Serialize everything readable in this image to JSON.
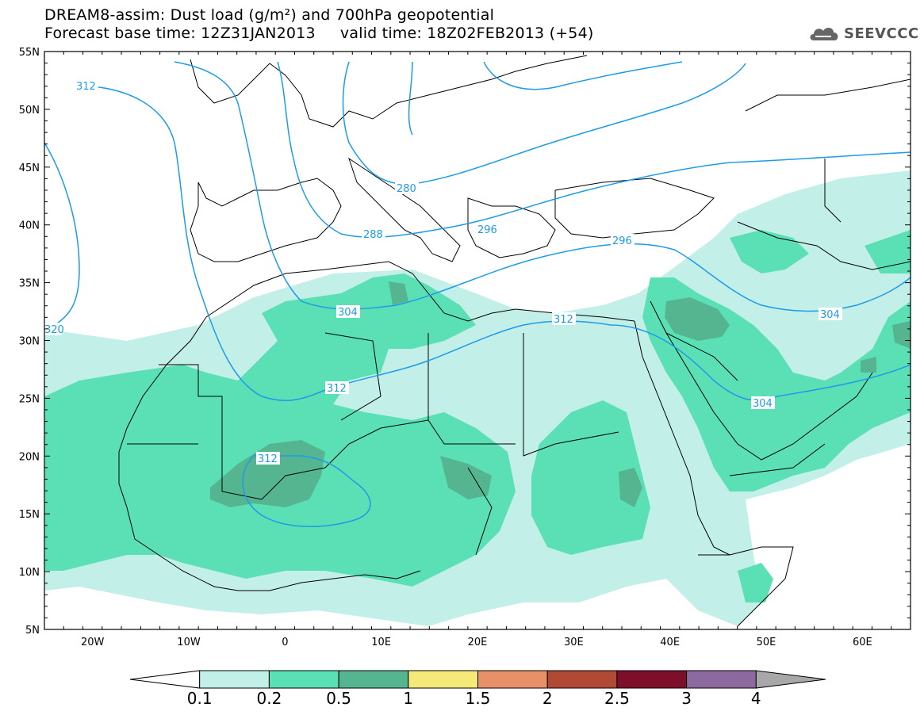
{
  "header": {
    "title_line1": "DREAM8-assim: Dust load (g/m²) and 700hPa geopotential",
    "title_line2": "Forecast base time: 12Z31JAN2013     valid time: 18Z02FEB2013 (+54)",
    "logo_text": "SEEVCCC"
  },
  "map": {
    "lon_range": [
      -25,
      65
    ],
    "lat_range": [
      5,
      55
    ],
    "lat_tick_labels": [
      "55N",
      "50N",
      "45N",
      "40N",
      "35N",
      "30N",
      "25N",
      "20N",
      "15N",
      "10N",
      "5N"
    ],
    "lon_tick_labels": [
      "20W",
      "10W",
      "0",
      "10E",
      "20E",
      "30E",
      "40E",
      "50E",
      "60E"
    ],
    "contour_labels": [
      "312",
      "280",
      "288",
      "296",
      "304",
      "304",
      "312",
      "312",
      "304",
      "312",
      "312",
      "320",
      "296"
    ],
    "contour_color": "#1e9be8",
    "dust_colors": {
      "level_0_1": "#c2efe7",
      "level_0_2": "#5be0b6",
      "level_0_5": "#55b591"
    }
  },
  "colorbar": {
    "levels": [
      "0.1",
      "0.2",
      "0.5",
      "1",
      "1.5",
      "2",
      "2.5",
      "3",
      "4"
    ],
    "colors": [
      "#ffffff",
      "#c2efe7",
      "#5be0b6",
      "#55b591",
      "#f5e97a",
      "#e89068",
      "#b04a35",
      "#7e0f2a",
      "#8c6aa0",
      "#a8a8a8"
    ]
  }
}
